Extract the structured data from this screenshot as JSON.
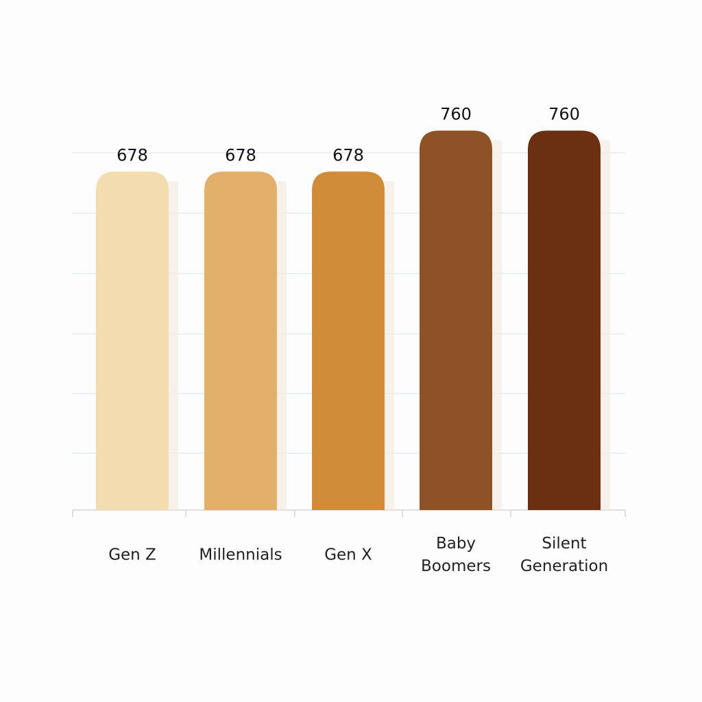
{
  "chart_data": {
    "type": "bar",
    "categories": [
      "Gen Z",
      "Millennials",
      "Gen X",
      "Baby Boomers",
      "Silent Generation"
    ],
    "values": [
      678,
      678,
      678,
      760,
      760
    ],
    "colors": [
      "#f2dcb0",
      "#e3b06b",
      "#d08c38",
      "#8f5126",
      "#6b2f12"
    ],
    "ylim": [
      0,
      850
    ]
  }
}
